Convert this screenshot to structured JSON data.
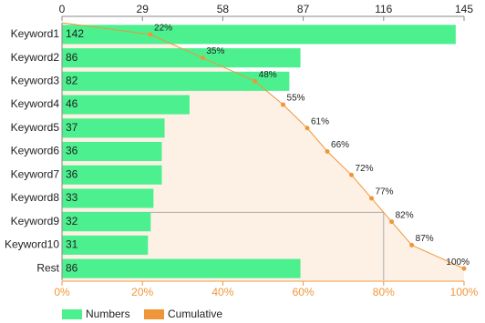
{
  "chart_data": {
    "type": "pareto",
    "categories": [
      "Keyword1",
      "Keyword2",
      "Keyword3",
      "Keyword4",
      "Keyword5",
      "Keyword6",
      "Keyword7",
      "Keyword8",
      "Keyword9",
      "Keyword10",
      "Rest"
    ],
    "series": [
      {
        "name": "Numbers",
        "color": "#4cf08e",
        "values": [
          142,
          86,
          82,
          46,
          37,
          36,
          36,
          33,
          32,
          31,
          86
        ]
      },
      {
        "name": "Cumulative",
        "color": "#f0963a",
        "axis": "x2",
        "values": [
          22,
          35,
          48,
          55,
          61,
          66,
          72,
          77,
          82,
          87,
          100
        ],
        "value_labels": [
          "22%",
          "35%",
          "48%",
          "55%",
          "61%",
          "66%",
          "72%",
          "77%",
          "82%",
          "87%",
          "100%"
        ]
      }
    ],
    "xlim": [
      0,
      145
    ],
    "xticks": [
      0,
      29,
      58,
      87,
      116,
      145
    ],
    "x2lim": [
      0,
      100
    ],
    "x2ticks": [
      {
        "value": 0,
        "label": "0%"
      },
      {
        "value": 20,
        "label": "20%"
      },
      {
        "value": 40,
        "label": "40%"
      },
      {
        "value": 60,
        "label": "60%"
      },
      {
        "value": 80,
        "label": "80%"
      },
      {
        "value": 100,
        "label": "100%"
      }
    ],
    "threshold": 80,
    "legend": "bottom-left"
  }
}
